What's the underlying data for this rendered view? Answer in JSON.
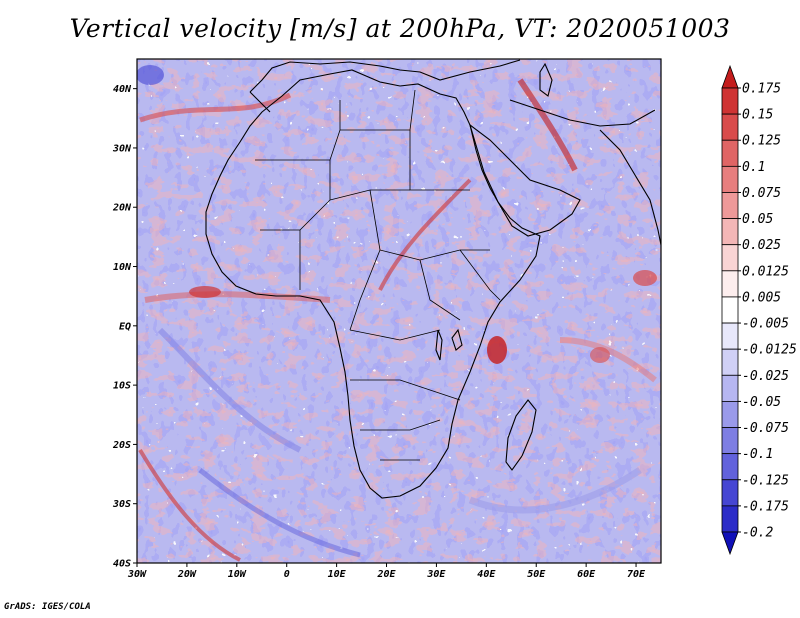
{
  "title": "Vertical velocity [m/s] at 200hPa, VT: 2020051003",
  "credit": "GrADS: IGES/COLA",
  "map": {
    "lon_range": [
      -30,
      75
    ],
    "lat_range": [
      -40,
      45
    ],
    "lat_ticks": [
      {
        "label": "40N",
        "value": 40
      },
      {
        "label": "30N",
        "value": 30
      },
      {
        "label": "20N",
        "value": 20
      },
      {
        "label": "10N",
        "value": 10
      },
      {
        "label": "EQ",
        "value": 0
      },
      {
        "label": "10S",
        "value": -10
      },
      {
        "label": "20S",
        "value": -20
      },
      {
        "label": "30S",
        "value": -30
      },
      {
        "label": "40S",
        "value": -40
      }
    ],
    "lon_ticks": [
      {
        "label": "30W",
        "value": -30
      },
      {
        "label": "20W",
        "value": -20
      },
      {
        "label": "10W",
        "value": -10
      },
      {
        "label": "0",
        "value": 0
      },
      {
        "label": "10E",
        "value": 10
      },
      {
        "label": "20E",
        "value": 20
      },
      {
        "label": "30E",
        "value": 30
      },
      {
        "label": "40E",
        "value": 40
      },
      {
        "label": "50E",
        "value": 50
      },
      {
        "label": "60E",
        "value": 60
      },
      {
        "label": "70E",
        "value": 70
      }
    ]
  },
  "colorbar": {
    "labels": [
      "0.175",
      "0.15",
      "0.125",
      "0.1",
      "0.075",
      "0.05",
      "0.025",
      "0.0125",
      "0.005",
      "-0.005",
      "-0.0125",
      "-0.025",
      "-0.05",
      "-0.075",
      "-0.1",
      "-0.125",
      "-0.175",
      "-0.2"
    ],
    "colors": [
      "#c41c1c",
      "#cf3333",
      "#d94b4b",
      "#e06565",
      "#e77e7e",
      "#ee9999",
      "#f3b6b6",
      "#f9d4d4",
      "#fdeeee",
      "#ffffff",
      "#e8e8fb",
      "#d0d0f6",
      "#b6b6f1",
      "#9a9aea",
      "#7e7ee3",
      "#6262dc",
      "#4646d3",
      "#2c2cc8",
      "#1010b8"
    ]
  }
}
